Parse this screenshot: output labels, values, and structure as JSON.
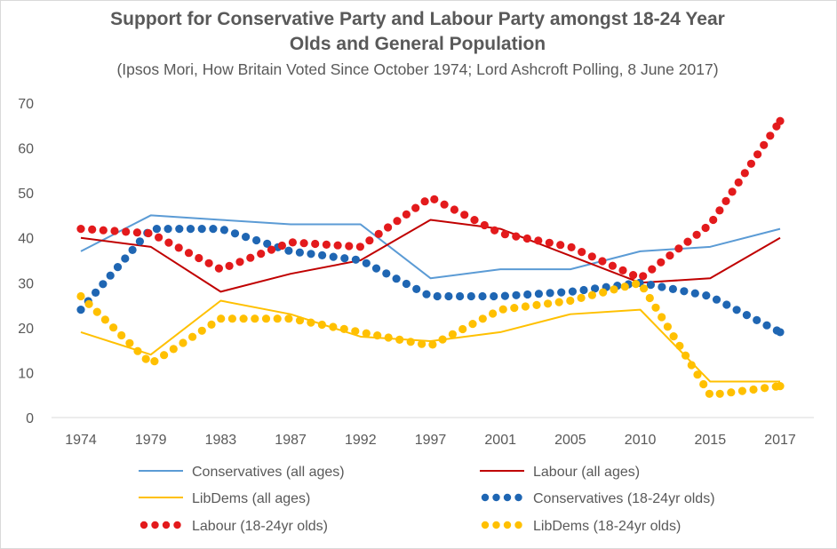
{
  "chart_data": {
    "type": "line",
    "title_line1": "Support for Conservative Party and Labour Party amongst 18-24 Year",
    "title_line2": "Olds and General Population",
    "subtitle": "(Ipsos Mori, How Britain Voted Since October 1974; Lord Ashcroft Polling, 8 June 2017)",
    "xlabel": "",
    "ylabel": "",
    "ylim": [
      0,
      70
    ],
    "yticks": [
      0,
      10,
      20,
      30,
      40,
      50,
      60,
      70
    ],
    "categories": [
      "1974",
      "1979",
      "1983",
      "1987",
      "1992",
      "1997",
      "2001",
      "2005",
      "2010",
      "2015",
      "2017"
    ],
    "grid": false,
    "legend_position": "bottom",
    "series": [
      {
        "name": "Conservatives (all ages)",
        "style": "solid",
        "color": "#5b9bd5",
        "values": [
          37,
          45,
          44,
          43,
          43,
          31,
          33,
          33,
          37,
          38,
          42
        ]
      },
      {
        "name": "Labour (all ages)",
        "style": "solid",
        "color": "#c00000",
        "values": [
          40,
          38,
          28,
          32,
          35,
          44,
          42,
          36,
          30,
          31,
          40
        ]
      },
      {
        "name": "LibDems (all ages)",
        "style": "solid",
        "color": "#ffc000",
        "values": [
          19,
          14,
          26,
          23,
          18,
          17,
          19,
          23,
          24,
          8,
          8
        ]
      },
      {
        "name": "Conservatives (18-24yr olds)",
        "style": "dotted",
        "color": "#1f66b3",
        "values": [
          24,
          42,
          42,
          37,
          35,
          27,
          27,
          28,
          30,
          27,
          19
        ]
      },
      {
        "name": "Labour (18-24yr olds)",
        "style": "dotted",
        "color": "#e31a1c",
        "values": [
          42,
          41,
          33,
          39,
          38,
          49,
          41,
          38,
          31,
          43,
          66
        ]
      },
      {
        "name": "LibDems (18-24yr olds)",
        "style": "dotted",
        "color": "#ffc000",
        "values": [
          27,
          12,
          22,
          22,
          19,
          16,
          24,
          26,
          30,
          5,
          7
        ]
      }
    ]
  }
}
